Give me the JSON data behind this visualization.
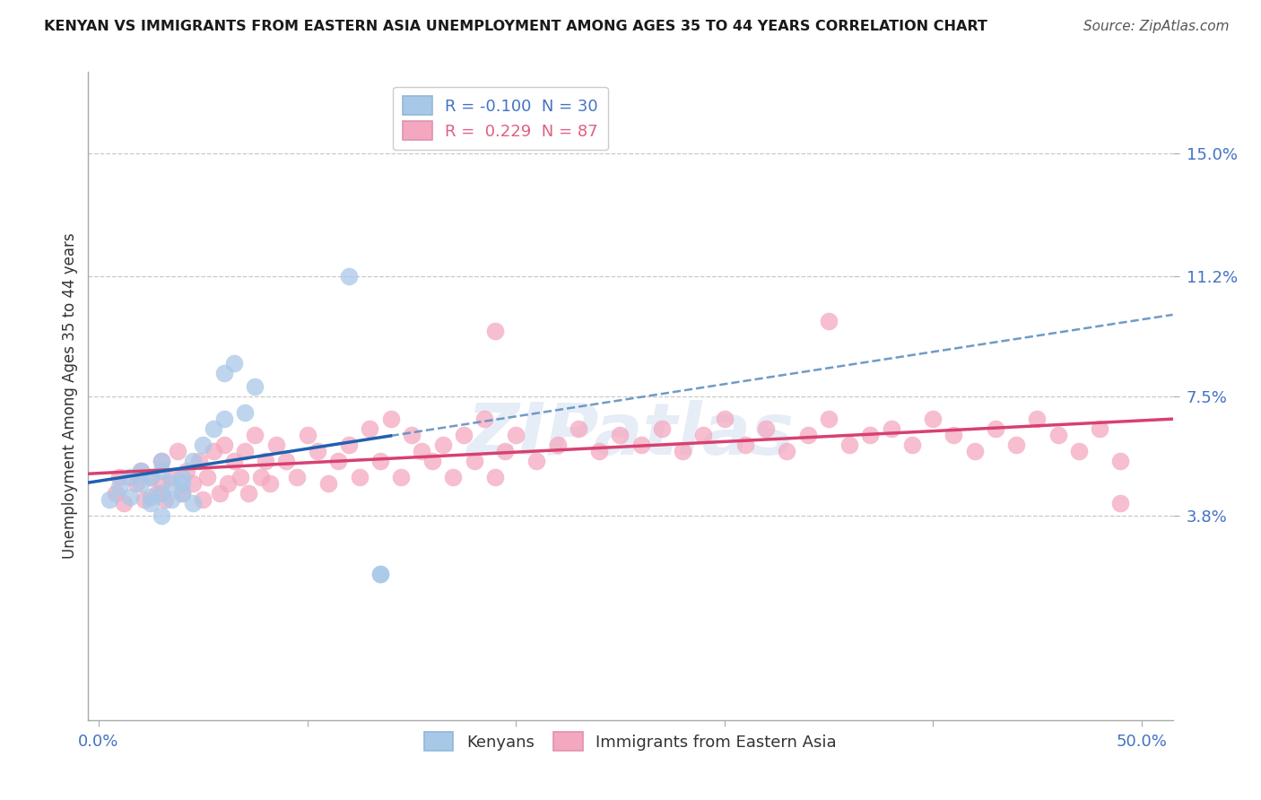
{
  "title": "KENYAN VS IMMIGRANTS FROM EASTERN ASIA UNEMPLOYMENT AMONG AGES 35 TO 44 YEARS CORRELATION CHART",
  "source": "Source: ZipAtlas.com",
  "ylabel": "Unemployment Among Ages 35 to 44 years",
  "xlim": [
    -0.005,
    0.515
  ],
  "ylim": [
    -0.025,
    0.175
  ],
  "ytick_vals": [
    0.038,
    0.075,
    0.112,
    0.15
  ],
  "ytick_labels": [
    "3.8%",
    "7.5%",
    "11.2%",
    "15.0%"
  ],
  "xtick_vals": [
    0.0,
    0.1,
    0.2,
    0.3,
    0.4,
    0.5
  ],
  "xtick_labels": [
    "0.0%",
    "",
    "",
    "",
    "",
    "50.0%"
  ],
  "legend_label1": "Kenyans",
  "legend_label2": "Immigrants from Eastern Asia",
  "kenyan_color": "#a8c8e8",
  "immigrant_color": "#f4a8c0",
  "kenyan_line_solid_color": "#2060b0",
  "kenyan_line_dash_color": "#6090c0",
  "immigrant_line_color": "#d84070",
  "background_color": "#ffffff",
  "blue_label": "R = -0.100  N = 30",
  "pink_label": "R =  0.229  N = 87",
  "blue_label_color": "#4472c4",
  "pink_label_color": "#e06080",
  "kenyan_points_x": [
    0.005,
    0.01,
    0.015,
    0.015,
    0.02,
    0.02,
    0.025,
    0.025,
    0.025,
    0.03,
    0.03,
    0.03,
    0.03,
    0.035,
    0.035,
    0.04,
    0.04,
    0.04,
    0.045,
    0.045,
    0.05,
    0.055,
    0.06,
    0.06,
    0.065,
    0.07,
    0.075,
    0.12,
    0.135,
    0.135
  ],
  "kenyan_points_y": [
    0.043,
    0.047,
    0.05,
    0.044,
    0.048,
    0.052,
    0.044,
    0.05,
    0.042,
    0.045,
    0.052,
    0.055,
    0.038,
    0.048,
    0.043,
    0.05,
    0.045,
    0.048,
    0.055,
    0.042,
    0.06,
    0.065,
    0.082,
    0.068,
    0.085,
    0.07,
    0.078,
    0.112,
    0.02,
    0.02
  ],
  "immigrant_points_x": [
    0.008,
    0.01,
    0.012,
    0.018,
    0.02,
    0.022,
    0.025,
    0.028,
    0.03,
    0.03,
    0.032,
    0.035,
    0.038,
    0.04,
    0.042,
    0.045,
    0.048,
    0.05,
    0.052,
    0.055,
    0.058,
    0.06,
    0.062,
    0.065,
    0.068,
    0.07,
    0.072,
    0.075,
    0.078,
    0.08,
    0.082,
    0.085,
    0.09,
    0.095,
    0.1,
    0.105,
    0.11,
    0.115,
    0.12,
    0.125,
    0.13,
    0.135,
    0.14,
    0.145,
    0.15,
    0.155,
    0.16,
    0.165,
    0.17,
    0.175,
    0.18,
    0.185,
    0.19,
    0.195,
    0.2,
    0.21,
    0.22,
    0.23,
    0.24,
    0.25,
    0.26,
    0.27,
    0.28,
    0.29,
    0.3,
    0.31,
    0.32,
    0.33,
    0.34,
    0.35,
    0.36,
    0.37,
    0.38,
    0.39,
    0.4,
    0.41,
    0.42,
    0.43,
    0.44,
    0.45,
    0.46,
    0.47,
    0.48,
    0.49,
    0.19,
    0.35,
    0.49
  ],
  "immigrant_points_y": [
    0.045,
    0.05,
    0.042,
    0.048,
    0.052,
    0.043,
    0.05,
    0.045,
    0.048,
    0.055,
    0.043,
    0.05,
    0.058,
    0.045,
    0.052,
    0.048,
    0.055,
    0.043,
    0.05,
    0.058,
    0.045,
    0.06,
    0.048,
    0.055,
    0.05,
    0.058,
    0.045,
    0.063,
    0.05,
    0.055,
    0.048,
    0.06,
    0.055,
    0.05,
    0.063,
    0.058,
    0.048,
    0.055,
    0.06,
    0.05,
    0.065,
    0.055,
    0.068,
    0.05,
    0.063,
    0.058,
    0.055,
    0.06,
    0.05,
    0.063,
    0.055,
    0.068,
    0.05,
    0.058,
    0.063,
    0.055,
    0.06,
    0.065,
    0.058,
    0.063,
    0.06,
    0.065,
    0.058,
    0.063,
    0.068,
    0.06,
    0.065,
    0.058,
    0.063,
    0.068,
    0.06,
    0.063,
    0.065,
    0.06,
    0.068,
    0.063,
    0.058,
    0.065,
    0.06,
    0.068,
    0.063,
    0.058,
    0.065,
    0.055,
    0.095,
    0.098,
    0.042
  ],
  "grid_color": "#c8c8c8",
  "spine_color": "#aaaaaa",
  "tick_color": "#4472c4"
}
